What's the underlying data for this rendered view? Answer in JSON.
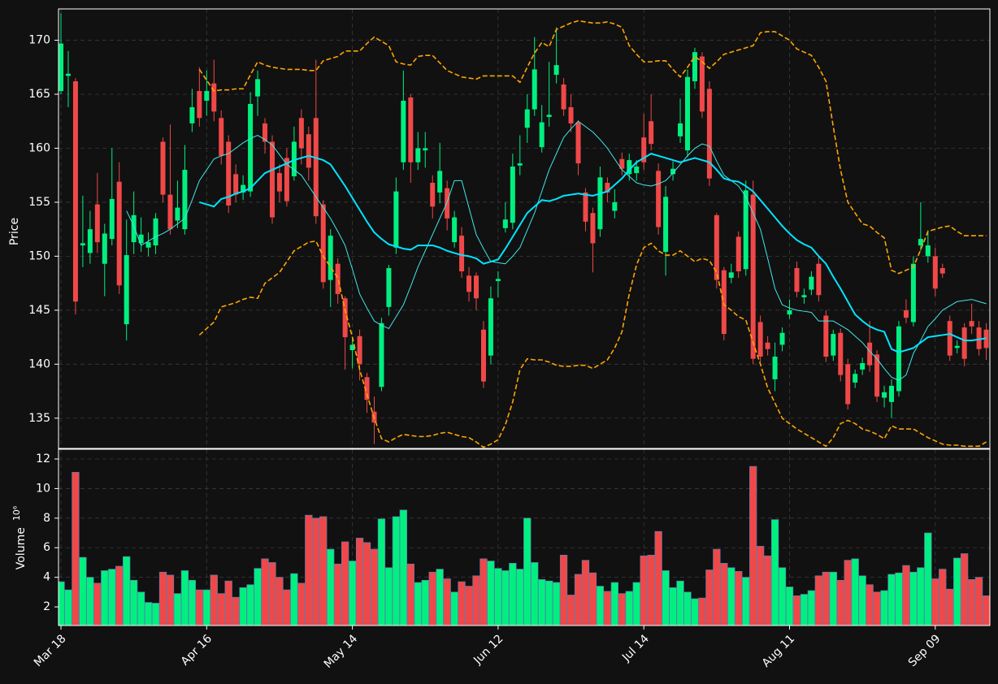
{
  "chart_data": {
    "type": "candlestick",
    "categories": [
      "Mar 18",
      null,
      null,
      null,
      null,
      null,
      null,
      null,
      null,
      null,
      null,
      null,
      null,
      null,
      null,
      null,
      null,
      null,
      null,
      null,
      "Apr 16",
      null,
      null,
      null,
      null,
      null,
      null,
      null,
      null,
      null,
      null,
      null,
      null,
      null,
      null,
      null,
      null,
      null,
      null,
      null,
      "May 14",
      null,
      null,
      null,
      null,
      null,
      null,
      null,
      null,
      null,
      null,
      null,
      null,
      null,
      null,
      null,
      null,
      null,
      null,
      null,
      "Jun 12",
      null,
      null,
      null,
      null,
      null,
      null,
      null,
      null,
      null,
      null,
      null,
      null,
      null,
      null,
      null,
      null,
      null,
      null,
      null,
      "Jul 14",
      null,
      null,
      null,
      null,
      null,
      null,
      null,
      null,
      null,
      null,
      null,
      null,
      null,
      null,
      null,
      null,
      null,
      null,
      null,
      "Aug 11",
      null,
      null,
      null,
      null,
      null,
      null,
      null,
      null,
      null,
      null,
      null,
      null,
      null,
      null,
      null,
      null,
      null,
      null,
      null,
      "Sep 09",
      null,
      null,
      null,
      null,
      null,
      null,
      null
    ],
    "open": [
      165.3,
      166.7,
      166.2,
      151.0,
      150.3,
      154.8,
      149.3,
      151.6,
      156.9,
      143.7,
      151.3,
      151.2,
      150.8,
      151.0,
      160.6,
      155.7,
      153.3,
      152.5,
      162.3,
      165.3,
      164.4,
      166.0,
      162.8,
      160.6,
      157.6,
      155.9,
      156.0,
      164.8,
      162.3,
      160.6,
      157.7,
      159.1,
      157.4,
      162.8,
      161.3,
      162.8,
      154.8,
      147.8,
      149.3,
      146.1,
      141.3,
      142.6,
      138.8,
      135.6,
      137.9,
      145.3,
      150.8,
      158.7,
      164.7,
      158.7,
      159.8,
      156.8,
      155.9,
      156.3,
      151.3,
      151.9,
      148.2,
      148.2,
      143.2,
      140.8,
      147.7,
      152.6,
      153.1,
      158.4,
      161.9,
      163.6,
      160.1,
      162.9,
      166.8,
      165.9,
      163.8,
      162.4,
      155.9,
      154.0,
      152.5,
      156.8,
      154.2,
      159.0,
      157.6,
      157.7,
      161.0,
      162.5,
      157.9,
      150.4,
      157.6,
      161.1,
      159.8,
      166.2,
      168.5,
      165.5,
      153.8,
      148.7,
      148.0,
      151.8,
      148.8,
      155.7,
      143.9,
      142.0,
      138.6,
      141.8,
      144.6,
      148.9,
      146.2,
      146.9,
      149.3,
      144.5,
      140.8,
      142.9,
      140.0,
      138.3,
      139.5,
      142.0,
      140.9,
      136.9,
      136.5,
      137.5,
      145.0,
      143.9,
      151.0,
      150.0,
      150.0,
      148.9,
      144.0,
      141.5,
      143.4,
      144.0,
      143.4,
      143.2
    ],
    "high": [
      172.5,
      169.0,
      166.5,
      155.6,
      154.2,
      157.7,
      153.0,
      160.0,
      158.7,
      153.4,
      156.0,
      153.6,
      152.2,
      154.0,
      161.0,
      162.2,
      157.0,
      160.3,
      165.5,
      167.5,
      167.2,
      168.2,
      163.5,
      161.2,
      158.5,
      157.5,
      165.2,
      167.2,
      162.8,
      161.2,
      158.5,
      160.0,
      162.0,
      163.6,
      162.0,
      168.2,
      155.2,
      152.5,
      149.8,
      146.3,
      142.5,
      143.2,
      139.2,
      137.0,
      144.3,
      149.2,
      157.3,
      167.2,
      165.0,
      161.5,
      161.5,
      157.5,
      160.5,
      157.0,
      154.2,
      152.7,
      149.0,
      148.5,
      144.0,
      147.2,
      148.6,
      155.0,
      159.5,
      161.2,
      165.0,
      170.3,
      164.0,
      168.0,
      171.2,
      166.5,
      165.0,
      162.6,
      156.3,
      154.5,
      158.3,
      157.3,
      156.2,
      159.6,
      159.5,
      158.9,
      163.2,
      165.0,
      158.6,
      156.5,
      158.8,
      164.6,
      167.3,
      169.3,
      168.9,
      166.2,
      154.0,
      149.0,
      149.3,
      152.3,
      157.0,
      157.0,
      144.5,
      142.6,
      142.0,
      143.4,
      146.0,
      149.5,
      147.0,
      148.6,
      150.0,
      145.0,
      143.2,
      143.3,
      140.5,
      139.5,
      140.6,
      144.0,
      141.3,
      138.0,
      138.6,
      144.0,
      146.0,
      150.0,
      155.0,
      152.4,
      150.8,
      149.3,
      144.5,
      142.2,
      143.8,
      145.6,
      144.0,
      143.8
    ],
    "low": [
      165.0,
      163.8,
      144.6,
      149.0,
      149.3,
      150.3,
      146.3,
      151.0,
      146.5,
      142.2,
      150.2,
      150.4,
      150.0,
      150.2,
      155.0,
      152.0,
      152.6,
      152.0,
      161.5,
      162.0,
      163.0,
      162.5,
      158.5,
      154.0,
      155.0,
      155.2,
      155.5,
      163.0,
      159.5,
      153.0,
      155.0,
      154.6,
      157.0,
      158.5,
      157.0,
      153.0,
      147.0,
      145.3,
      145.6,
      139.5,
      139.6,
      138.5,
      135.5,
      132.6,
      137.5,
      144.5,
      150.2,
      158.0,
      156.8,
      158.0,
      158.2,
      153.5,
      154.9,
      152.4,
      150.8,
      148.0,
      145.8,
      145.0,
      137.8,
      140.0,
      146.2,
      152.2,
      152.5,
      157.5,
      160.5,
      163.0,
      159.6,
      162.0,
      166.0,
      163.0,
      161.5,
      157.5,
      152.3,
      148.5,
      151.8,
      155.0,
      153.5,
      157.5,
      157.0,
      157.0,
      158.0,
      159.8,
      152.0,
      148.2,
      157.0,
      160.5,
      159.2,
      165.5,
      162.8,
      156.5,
      147.0,
      142.2,
      147.5,
      148.0,
      148.2,
      140.0,
      140.2,
      140.8,
      137.5,
      141.2,
      144.2,
      146.2,
      145.6,
      146.4,
      145.8,
      140.2,
      140.3,
      138.4,
      135.8,
      137.8,
      139.0,
      139.3,
      136.5,
      136.0,
      135.0,
      137.0,
      143.8,
      143.5,
      150.5,
      149.4,
      146.3,
      148.0,
      140.3,
      141.0,
      139.8,
      142.8,
      140.8,
      140.4
    ],
    "close": [
      169.7,
      166.9,
      145.8,
      151.2,
      152.5,
      151.3,
      152.1,
      155.3,
      147.3,
      150.1,
      153.8,
      152.0,
      151.3,
      153.5,
      155.7,
      152.5,
      154.5,
      158.0,
      163.8,
      162.8,
      165.3,
      163.4,
      159.3,
      154.7,
      155.7,
      156.6,
      164.1,
      166.4,
      160.6,
      153.6,
      156.0,
      155.1,
      160.6,
      160.0,
      158.2,
      153.7,
      147.6,
      151.9,
      146.5,
      142.5,
      141.8,
      140.0,
      136.7,
      134.6,
      143.8,
      148.9,
      156.0,
      164.4,
      158.7,
      160.0,
      160.0,
      154.6,
      157.9,
      153.5,
      153.6,
      148.6,
      146.7,
      146.1,
      138.4,
      146.1,
      147.9,
      153.4,
      158.3,
      158.6,
      163.6,
      167.3,
      162.4,
      163.1,
      167.7,
      163.6,
      162.3,
      158.6,
      153.2,
      151.2,
      157.3,
      155.9,
      155.0,
      158.1,
      158.9,
      158.3,
      158.7,
      160.4,
      152.7,
      155.5,
      158.1,
      162.3,
      166.6,
      168.9,
      163.4,
      157.2,
      147.8,
      142.8,
      148.5,
      148.6,
      156.1,
      140.5,
      140.7,
      141.4,
      140.7,
      142.9,
      145.0,
      146.7,
      146.4,
      148.1,
      146.4,
      140.7,
      142.8,
      139.0,
      136.3,
      139.1,
      140.1,
      139.9,
      137.0,
      137.4,
      138.0,
      143.5,
      144.3,
      149.3,
      151.6,
      151.0,
      147.0,
      148.4,
      140.8,
      141.7,
      140.5,
      143.5,
      141.4,
      141.5
    ],
    "volume": [
      3.7,
      3.15,
      11.1,
      5.35,
      4.0,
      3.6,
      4.45,
      4.55,
      4.75,
      5.4,
      3.8,
      3.0,
      2.3,
      2.25,
      4.35,
      4.15,
      2.9,
      4.45,
      3.8,
      3.15,
      3.15,
      4.15,
      2.9,
      3.75,
      2.65,
      3.3,
      3.5,
      4.6,
      5.25,
      5.0,
      4.0,
      3.15,
      4.25,
      3.6,
      8.2,
      8.0,
      8.1,
      5.9,
      4.9,
      6.4,
      5.1,
      6.65,
      6.35,
      5.9,
      7.95,
      4.65,
      8.1,
      8.55,
      4.9,
      3.65,
      3.8,
      4.35,
      4.55,
      3.9,
      3.0,
      3.7,
      3.4,
      4.1,
      5.25,
      5.1,
      4.6,
      4.45,
      4.95,
      4.55,
      8.0,
      5.0,
      3.85,
      3.75,
      3.65,
      5.5,
      2.8,
      4.2,
      5.15,
      4.3,
      3.4,
      3.05,
      3.65,
      2.9,
      3.05,
      3.65,
      5.45,
      5.5,
      7.1,
      4.45,
      3.3,
      3.75,
      3.0,
      2.55,
      2.6,
      4.5,
      5.9,
      4.95,
      4.65,
      4.4,
      4.0,
      11.5,
      6.1,
      5.45,
      7.9,
      4.65,
      3.35,
      2.75,
      2.85,
      3.1,
      4.1,
      4.35,
      4.35,
      3.8,
      5.15,
      5.25,
      4.1,
      3.5,
      3.0,
      3.1,
      4.2,
      4.3,
      4.8,
      4.35,
      4.65,
      7.0,
      3.9,
      4.55,
      3.2,
      5.3,
      5.6,
      3.85,
      4.0,
      2.75
    ],
    "up_color": "#00f080",
    "down_color": "#f04848",
    "lines": [
      {
        "color": "#ffa500",
        "width": 1.6,
        "dash": true,
        "values": [
          null,
          null,
          null,
          null,
          null,
          null,
          null,
          null,
          null,
          null,
          null,
          null,
          null,
          null,
          null,
          null,
          null,
          null,
          null,
          167.3,
          166.3,
          165.3,
          165.4,
          165.4,
          165.5,
          165.5,
          166.8,
          168.0,
          167.7,
          167.5,
          167.4,
          167.3,
          167.3,
          167.3,
          167.2,
          167.2,
          168.1,
          168.3,
          168.5,
          169.0,
          169.0,
          169.0,
          169.7,
          170.3,
          169.9,
          169.5,
          168.0,
          167.8,
          167.7,
          168.5,
          168.6,
          168.6,
          167.9,
          167.2,
          166.9,
          166.6,
          166.5,
          166.4,
          166.7,
          166.7,
          166.7,
          166.7,
          166.7,
          166.1,
          167.5,
          168.8,
          169.8,
          169.4,
          171.0,
          171.3,
          171.6,
          171.8,
          171.7,
          171.6,
          171.6,
          171.7,
          171.5,
          171.2,
          169.5,
          168.7,
          168.0,
          168.0,
          168.1,
          168.1,
          167.3,
          166.6,
          167.5,
          168.5,
          168.0,
          167.4,
          168.0,
          168.7,
          168.9,
          169.1,
          169.3,
          169.5,
          170.7,
          170.8,
          170.8,
          170.4,
          170.0,
          169.2,
          168.9,
          168.6,
          167.5,
          166.2,
          162.0,
          158.0,
          155.0,
          154.0,
          153.0,
          152.8,
          152.2,
          151.7,
          148.7,
          148.4,
          148.7,
          149.0,
          150.6,
          152.3,
          152.5,
          152.7,
          152.8,
          152.3,
          151.9,
          151.9,
          151.9,
          151.9
        ]
      },
      {
        "color": "#ffa500",
        "width": 1.6,
        "dash": true,
        "values": [
          null,
          null,
          null,
          null,
          null,
          null,
          null,
          null,
          null,
          null,
          null,
          null,
          null,
          null,
          null,
          null,
          null,
          null,
          null,
          142.7,
          143.3,
          143.9,
          145.3,
          145.5,
          145.7,
          146.0,
          146.2,
          146.1,
          147.5,
          148.0,
          148.5,
          149.5,
          150.5,
          150.9,
          151.3,
          151.4,
          150.0,
          149.0,
          148.0,
          145.0,
          142.5,
          139.5,
          137.2,
          135.0,
          133.1,
          132.8,
          133.2,
          133.5,
          133.4,
          133.3,
          133.3,
          133.4,
          133.6,
          133.7,
          133.5,
          133.3,
          133.2,
          132.8,
          132.3,
          132.6,
          133.0,
          134.4,
          136.5,
          139.5,
          140.5,
          140.4,
          140.4,
          140.2,
          139.9,
          139.8,
          139.8,
          139.9,
          139.9,
          139.6,
          140.0,
          140.4,
          141.5,
          143.0,
          146.5,
          149.2,
          150.8,
          151.2,
          150.5,
          150.1,
          150.1,
          150.5,
          150.0,
          149.5,
          149.8,
          149.6,
          148.5,
          145.5,
          145.0,
          144.4,
          144.1,
          142.0,
          140.0,
          137.8,
          136.4,
          135.0,
          134.5,
          134.0,
          133.6,
          133.2,
          132.8,
          132.4,
          133.2,
          134.5,
          134.8,
          134.5,
          134.0,
          133.8,
          133.5,
          133.1,
          134.3,
          134.0,
          134.0,
          134.0,
          133.6,
          133.2,
          132.9,
          132.6,
          132.5,
          132.5,
          132.4,
          132.4,
          132.4,
          132.8
        ]
      },
      {
        "color": "#40e8e8",
        "width": 1,
        "dash": false,
        "values": [
          null,
          null,
          null,
          null,
          null,
          null,
          null,
          null,
          null,
          154.2,
          152.8,
          151.0,
          151.4,
          151.8,
          152.1,
          152.5,
          153.0,
          153.5,
          155.2,
          157.0,
          158.0,
          159.0,
          159.3,
          159.5,
          160.0,
          160.5,
          160.9,
          161.2,
          160.8,
          160.3,
          159.4,
          158.5,
          158.0,
          157.5,
          156.5,
          155.5,
          154.5,
          153.5,
          152.3,
          151.0,
          148.8,
          146.5,
          145.2,
          144.0,
          143.6,
          143.3,
          144.4,
          145.5,
          147.2,
          149.0,
          150.5,
          152.0,
          153.5,
          155.0,
          157.0,
          157.0,
          154.5,
          152.0,
          150.7,
          149.5,
          149.4,
          149.3,
          150.0,
          150.8,
          152.4,
          154.0,
          156.0,
          158.0,
          159.5,
          161.0,
          161.8,
          162.5,
          162.0,
          161.5,
          160.8,
          160.0,
          159.0,
          158.0,
          157.4,
          156.8,
          156.6,
          156.5,
          156.7,
          157.0,
          157.7,
          158.5,
          159.3,
          160.0,
          160.4,
          160.2,
          158.8,
          157.5,
          157.0,
          156.5,
          155.5,
          154.0,
          152.5,
          149.8,
          147.0,
          145.5,
          145.2,
          145.0,
          144.9,
          144.8,
          144.0,
          144.0,
          144.0,
          143.6,
          143.2,
          142.6,
          142.0,
          141.2,
          140.5,
          139.6,
          138.8,
          138.5,
          139.0,
          141.0,
          142.2,
          143.5,
          144.2,
          145.0,
          145.4,
          145.8,
          145.9,
          146.0,
          145.8,
          145.6
        ]
      },
      {
        "color": "#00e5ff",
        "width": 2,
        "dash": false,
        "values": [
          null,
          null,
          null,
          null,
          null,
          null,
          null,
          null,
          null,
          null,
          null,
          null,
          null,
          null,
          null,
          null,
          null,
          null,
          null,
          155.0,
          154.8,
          154.6,
          155.3,
          155.5,
          155.8,
          156.0,
          156.3,
          157.0,
          157.7,
          158.0,
          158.3,
          158.6,
          158.9,
          159.1,
          159.3,
          159.1,
          158.9,
          158.5,
          157.5,
          156.5,
          155.4,
          154.3,
          153.2,
          152.2,
          151.6,
          151.1,
          150.9,
          150.7,
          150.6,
          151.0,
          151.0,
          151.0,
          150.8,
          150.5,
          150.3,
          150.1,
          150.0,
          149.8,
          149.3,
          149.5,
          149.7,
          150.7,
          151.8,
          152.9,
          154.0,
          154.6,
          155.2,
          155.1,
          155.3,
          155.6,
          155.7,
          155.8,
          155.7,
          155.6,
          155.8,
          156.0,
          156.6,
          157.2,
          158.0,
          158.7,
          159.1,
          159.5,
          159.3,
          159.1,
          158.9,
          158.7,
          158.9,
          159.1,
          158.9,
          158.7,
          158.0,
          157.2,
          157.0,
          156.9,
          156.5,
          156.0,
          155.2,
          154.4,
          153.6,
          152.8,
          152.1,
          151.5,
          151.1,
          150.8,
          150.0,
          149.3,
          148.1,
          147.0,
          145.8,
          144.6,
          144.0,
          143.5,
          143.2,
          143.0,
          141.4,
          141.1,
          141.3,
          141.5,
          142.0,
          142.5,
          142.6,
          142.7,
          142.8,
          142.5,
          142.2,
          142.2,
          142.3,
          142.4
        ]
      }
    ],
    "ylabel": "Price",
    "ylim": [
      132.2,
      172.9
    ],
    "yticks": [
      135,
      140,
      145,
      150,
      155,
      160,
      165,
      170
    ],
    "volume_ylabel": "Volume",
    "volume_unit": "10⁶",
    "volume_ylim": [
      0.74,
      12.66
    ],
    "volume_yticks": [
      2,
      4,
      6,
      8,
      10,
      12
    ],
    "grid": true
  }
}
